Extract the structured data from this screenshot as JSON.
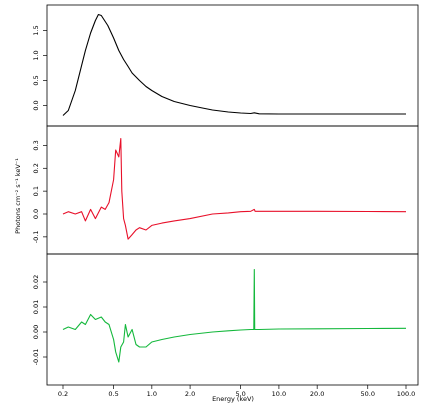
{
  "chart_data": {
    "type": "line",
    "xlabel": "Energy (keV)",
    "ylabel": "Photons cm⁻² s⁻¹ keV⁻¹",
    "x_scale": "log",
    "x_ticks": [
      0.2,
      0.5,
      1.0,
      2.0,
      5.0,
      10.0,
      20.0,
      50.0,
      100.0
    ],
    "x_tick_labels": [
      "0.2",
      "0.5",
      "1.0",
      "2.0",
      "5.0",
      "10.0",
      "20.0",
      "50.0",
      "100.0"
    ],
    "xlim": [
      0.2,
      100
    ],
    "panels": [
      {
        "color": "#000000",
        "ylim": [
          -0.25,
          1.85
        ],
        "y_ticks": [
          0.0,
          0.5,
          1.0,
          1.5
        ],
        "y_tick_labels": [
          "0.0",
          "0.5",
          "1.0",
          "1.5"
        ],
        "x": [
          0.2,
          0.22,
          0.25,
          0.28,
          0.3,
          0.33,
          0.36,
          0.38,
          0.4,
          0.42,
          0.45,
          0.48,
          0.5,
          0.55,
          0.6,
          0.65,
          0.7,
          0.8,
          0.9,
          1.0,
          1.2,
          1.5,
          2.0,
          2.5,
          3.0,
          4.0,
          5.0,
          6.0,
          6.4,
          7.0,
          10.0,
          20.0,
          50.0,
          100.0
        ],
        "y": [
          -0.2,
          -0.1,
          0.3,
          0.8,
          1.1,
          1.45,
          1.7,
          1.82,
          1.8,
          1.72,
          1.6,
          1.45,
          1.35,
          1.1,
          0.92,
          0.78,
          0.65,
          0.5,
          0.38,
          0.3,
          0.18,
          0.08,
          0.0,
          -0.05,
          -0.09,
          -0.13,
          -0.15,
          -0.16,
          -0.145,
          -0.165,
          -0.17,
          -0.17,
          -0.17,
          -0.17
        ]
      },
      {
        "color": "#e8102a",
        "ylim": [
          -0.14,
          0.35
        ],
        "y_ticks": [
          -0.1,
          0.0,
          0.1,
          0.2,
          0.3
        ],
        "y_tick_labels": [
          "-0.1",
          "0.0",
          "0.1",
          "0.2",
          "0.3"
        ],
        "x": [
          0.2,
          0.22,
          0.25,
          0.28,
          0.3,
          0.33,
          0.36,
          0.4,
          0.43,
          0.46,
          0.5,
          0.52,
          0.55,
          0.57,
          0.58,
          0.6,
          0.62,
          0.65,
          0.7,
          0.75,
          0.8,
          0.9,
          1.0,
          1.2,
          1.5,
          2.0,
          3.0,
          4.0,
          5.0,
          6.0,
          6.4,
          6.5,
          7.0,
          10.0,
          20.0,
          50.0,
          100.0
        ],
        "y": [
          0.0,
          0.01,
          0.0,
          0.01,
          -0.03,
          0.02,
          -0.02,
          0.03,
          0.02,
          0.05,
          0.15,
          0.28,
          0.25,
          0.33,
          0.1,
          -0.02,
          -0.05,
          -0.11,
          -0.09,
          -0.07,
          -0.06,
          -0.07,
          -0.05,
          -0.04,
          -0.03,
          -0.02,
          0.0,
          0.005,
          0.01,
          0.012,
          0.02,
          0.012,
          0.012,
          0.012,
          0.012,
          0.011,
          0.01
        ]
      },
      {
        "color": "#14b83c",
        "ylim": [
          -0.018,
          0.028
        ],
        "y_ticks": [
          -0.01,
          0.0,
          0.01,
          0.02
        ],
        "y_tick_labels": [
          "-0.01",
          "0.00",
          "0.01",
          "0.02"
        ],
        "x": [
          0.2,
          0.22,
          0.25,
          0.28,
          0.3,
          0.33,
          0.36,
          0.4,
          0.43,
          0.46,
          0.5,
          0.52,
          0.55,
          0.57,
          0.6,
          0.62,
          0.65,
          0.7,
          0.75,
          0.8,
          0.9,
          1.0,
          1.2,
          1.5,
          2.0,
          3.0,
          4.0,
          5.0,
          6.0,
          6.35,
          6.4,
          6.45,
          7.0,
          10.0,
          20.0,
          50.0,
          100.0
        ],
        "y": [
          0.001,
          0.002,
          0.001,
          0.004,
          0.003,
          0.007,
          0.005,
          0.006,
          0.004,
          0.003,
          -0.003,
          -0.008,
          -0.012,
          -0.006,
          -0.004,
          0.003,
          -0.002,
          0.001,
          -0.005,
          -0.006,
          -0.006,
          -0.004,
          -0.003,
          -0.002,
          -0.001,
          0.0,
          0.0005,
          0.0008,
          0.001,
          0.001,
          0.025,
          0.001,
          0.001,
          0.0012,
          0.0013,
          0.0014,
          0.0015
        ]
      }
    ]
  }
}
